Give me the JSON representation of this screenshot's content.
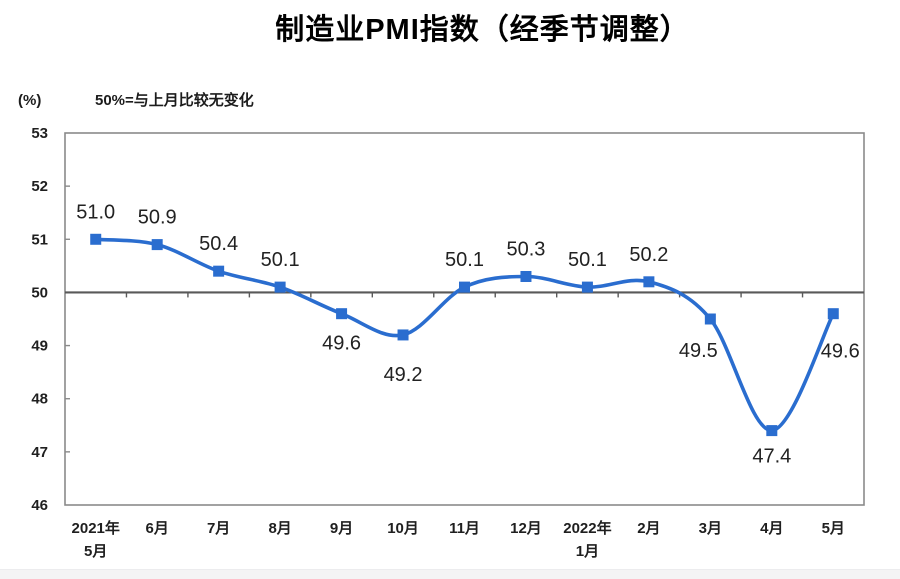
{
  "page": {
    "background": "#ffffff",
    "footer_strip_color": "#f4f4f5"
  },
  "chart_data": {
    "type": "line",
    "title": "制造业PMI指数（经季节调整）",
    "ylabel": "(%)",
    "reference_note": "50%=与上月比较无变化",
    "categories": [
      "2021年\n5月",
      "6月",
      "7月",
      "8月",
      "9月",
      "10月",
      "11月",
      "12月",
      "2022年\n1月",
      "2月",
      "3月",
      "4月",
      "5月"
    ],
    "values": [
      51.0,
      50.9,
      50.4,
      50.1,
      49.6,
      49.2,
      50.1,
      50.3,
      50.1,
      50.2,
      49.5,
      47.4,
      49.6
    ],
    "ylim": [
      46,
      53
    ],
    "yticks": [
      53,
      52,
      51,
      50,
      49,
      48,
      47,
      46
    ],
    "reference_line": 50,
    "grid": false,
    "legend": false,
    "line_color": "#2a6dcf",
    "marker": "square",
    "axis_color": "#8a8a8a",
    "reference_line_color": "#595959",
    "label_sides": [
      "above",
      "above",
      "above",
      "above",
      "below",
      "below",
      "above",
      "above",
      "above",
      "above",
      "below",
      "below",
      "below"
    ],
    "label_dx": [
      0,
      0,
      0,
      0,
      0,
      0,
      0,
      0,
      0,
      0,
      -12,
      0,
      7
    ],
    "label_dy": [
      0,
      0,
      0,
      0,
      0,
      10,
      0,
      0,
      0,
      0,
      2,
      -4,
      8
    ]
  }
}
